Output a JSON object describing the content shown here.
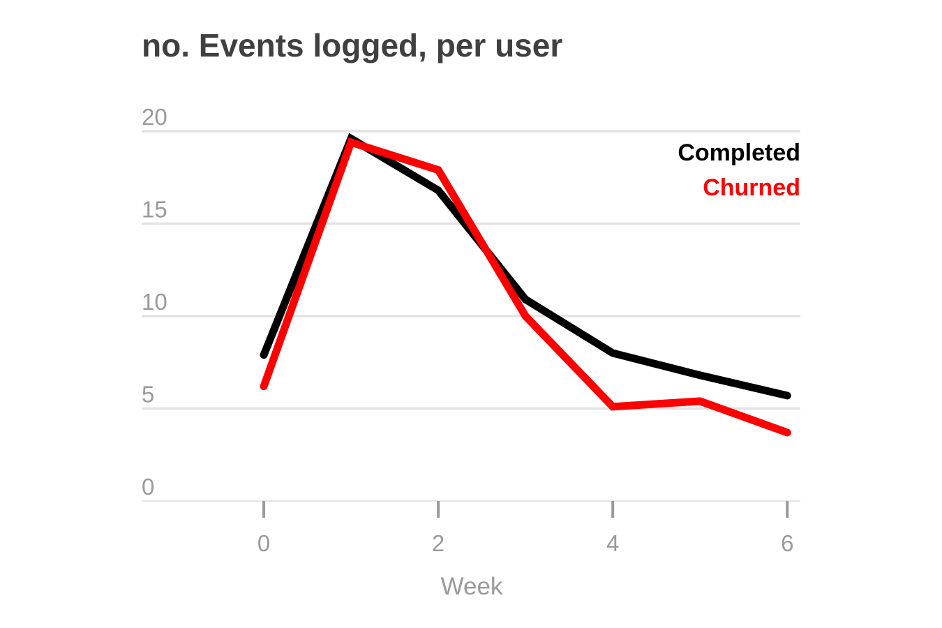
{
  "chart_data": {
    "type": "line",
    "title": "no. Events logged, per user",
    "xlabel": "Week",
    "ylabel": "",
    "xlim": [
      -1.4,
      6.15
    ],
    "ylim": [
      0,
      20
    ],
    "xticks": [
      0,
      2,
      4,
      6
    ],
    "yticks": [
      0,
      5,
      10,
      15,
      20
    ],
    "grid": true,
    "legend_position": "top-right",
    "x": [
      0,
      1,
      2,
      3,
      4,
      5,
      6
    ],
    "series": [
      {
        "name": "Completed",
        "color": "#000000",
        "values": [
          7.9,
          19.6,
          16.8,
          10.9,
          8.0,
          6.8,
          5.7
        ]
      },
      {
        "name": "Churned",
        "color": "#ff0000",
        "values": [
          6.2,
          19.4,
          17.9,
          10.0,
          5.1,
          5.4,
          3.7
        ]
      }
    ]
  }
}
